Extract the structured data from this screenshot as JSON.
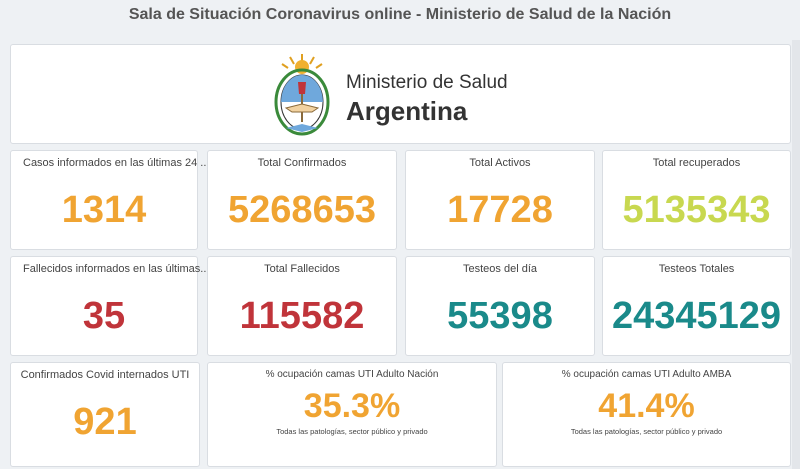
{
  "header": {
    "title": "Sala de Situación Coronavirus online - Ministerio de Salud de la Nación"
  },
  "logo": {
    "line1": "Ministerio de Salud",
    "line2": "Argentina",
    "icon": "escudo-nacional-icon"
  },
  "tiles": [
    {
      "label": "Casos informados en las últimas 24 ...",
      "value": "1314",
      "color": "#f0a432"
    },
    {
      "label": "Total Confirmados",
      "value": "5268653",
      "color": "#f0a432"
    },
    {
      "label": "Total Activos",
      "value": "17728",
      "color": "#f0a432"
    },
    {
      "label": "Total recuperados",
      "value": "5135343",
      "color": "#c8d850"
    },
    {
      "label": "Fallecidos informados en las últimas...",
      "value": "35",
      "color": "#c0343a"
    },
    {
      "label": "Total Fallecidos",
      "value": "115582",
      "color": "#c0343a"
    },
    {
      "label": "Testeos del día",
      "value": "55398",
      "color": "#1a8a8a"
    },
    {
      "label": "Testeos Totales",
      "value": "24345129",
      "color": "#1a8a8a"
    },
    {
      "label": "Confirmados Covid internados UTI",
      "value": "921",
      "color": "#f0a432"
    },
    {
      "label": "% ocupación camas UTI Adulto Nación",
      "value": "35.3%",
      "sublabel": "Todas las patologías, sector público y privado",
      "color": "#f0a432"
    },
    {
      "label": "% ocupación camas UTI Adulto AMBA",
      "value": "41.4%",
      "sublabel": "Todas las patologías, sector público y privado",
      "color": "#f0a432"
    }
  ]
}
